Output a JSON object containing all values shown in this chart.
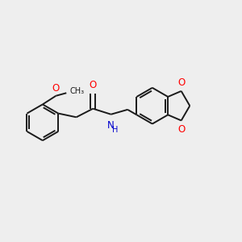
{
  "bg_color": "#eeeeee",
  "bond_color": "#1a1a1a",
  "atom_colors": {
    "O": "#ff0000",
    "N": "#0000cd",
    "C": "#1a1a1a"
  },
  "bond_width": 1.4,
  "dbo": 0.05,
  "font_size_atom": 8.5,
  "xlim": [
    0.2,
    5.2
  ],
  "ylim": [
    0.5,
    3.2
  ]
}
